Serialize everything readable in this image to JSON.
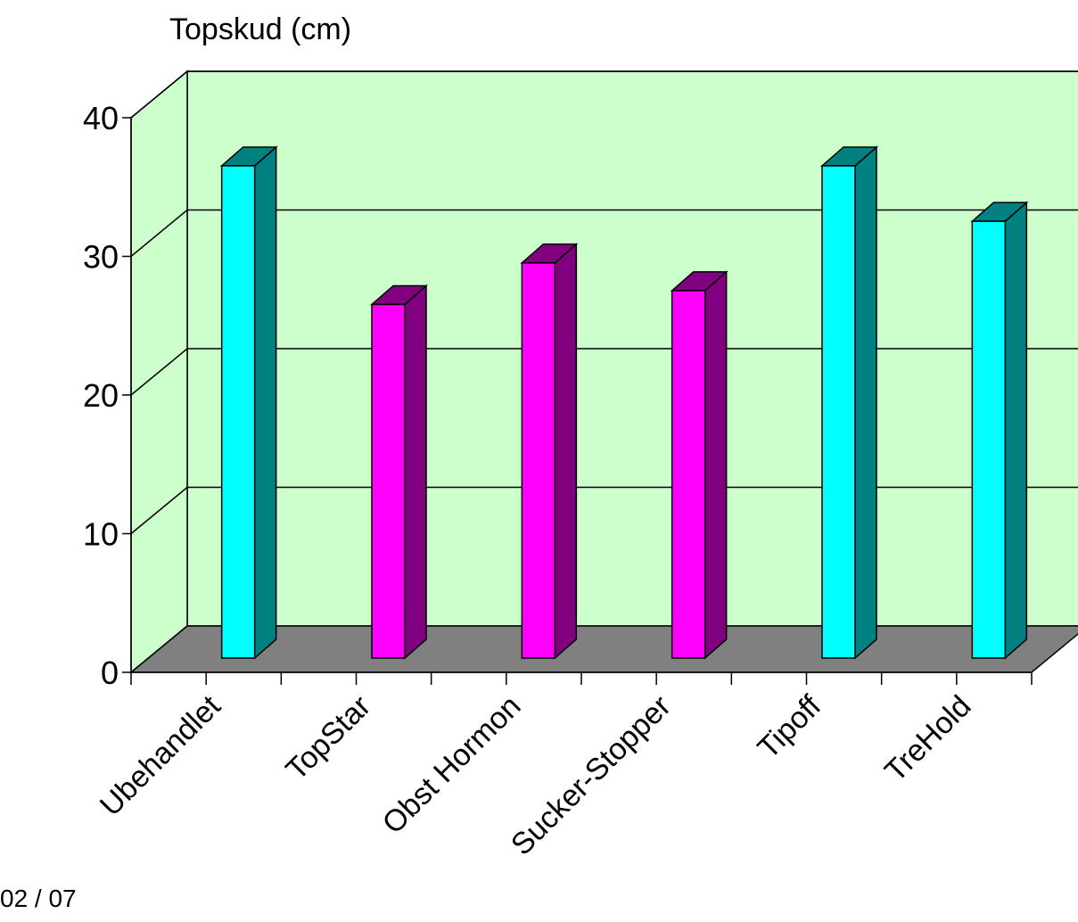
{
  "chart_data": {
    "type": "bar",
    "title": "Topskud (cm)",
    "categories": [
      "Ubehandlet",
      "TopStar",
      "Obst Hormon",
      "Sucker-Stopper",
      "Tipoff",
      "TreHold"
    ],
    "values": [
      35.5,
      25.5,
      28.5,
      26.5,
      35.5,
      31.5
    ],
    "ylim": [
      0,
      40
    ],
    "yticks": [
      0,
      10,
      20,
      30,
      40
    ],
    "grid": true,
    "bar_colors": [
      "#00ffff",
      "#ff00ff",
      "#ff00ff",
      "#ff00ff",
      "#00ffff",
      "#00ffff"
    ],
    "bar_side_colors": [
      "#008080",
      "#800080",
      "#800080",
      "#800080",
      "#008080",
      "#008080"
    ],
    "wall_color": "#ccffcc",
    "floor_color": "#808080"
  },
  "footer": {
    "text": "02 / 07"
  }
}
